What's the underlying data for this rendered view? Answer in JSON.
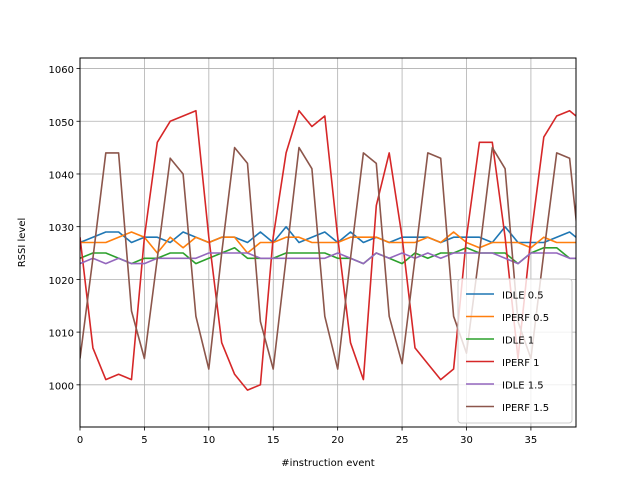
{
  "chart_data": {
    "type": "line",
    "title": "",
    "xlabel": "#instruction event",
    "ylabel": "RSSI level",
    "xlim": [
      0,
      38.5
    ],
    "ylim": [
      992,
      1062
    ],
    "xticks": [
      0,
      5,
      10,
      15,
      20,
      25,
      30,
      35
    ],
    "yticks": [
      1000,
      1010,
      1020,
      1030,
      1040,
      1050,
      1060
    ],
    "grid": true,
    "legend_position": "lower-right",
    "x": [
      0,
      1,
      2,
      3,
      4,
      5,
      6,
      7,
      8,
      9,
      10,
      11,
      12,
      13,
      14,
      15,
      16,
      17,
      18,
      19,
      20,
      21,
      22,
      23,
      24,
      25,
      26,
      27,
      28,
      29,
      30,
      31,
      32,
      33,
      34,
      35,
      36,
      37,
      38,
      39
    ],
    "series": [
      {
        "name": "IDLE 0.5",
        "color": "#1f77b4",
        "values": [
          1027,
          1028,
          1029,
          1029,
          1027,
          1028,
          1028,
          1027,
          1029,
          1028,
          1027,
          1028,
          1028,
          1027,
          1029,
          1027,
          1030,
          1027,
          1028,
          1029,
          1027,
          1029,
          1027,
          1028,
          1027,
          1028,
          1028,
          1028,
          1027,
          1028,
          1028,
          1028,
          1027,
          1030,
          1027,
          1027,
          1027,
          1028,
          1029,
          1027
        ]
      },
      {
        "name": "IPERF 0.5",
        "color": "#ff7f0e",
        "values": [
          1027,
          1027,
          1027,
          1028,
          1029,
          1028,
          1025,
          1028,
          1026,
          1028,
          1027,
          1028,
          1028,
          1025,
          1027,
          1027,
          1028,
          1028,
          1027,
          1027,
          1027,
          1028,
          1028,
          1028,
          1027,
          1027,
          1027,
          1028,
          1027,
          1029,
          1027,
          1026,
          1027,
          1027,
          1027,
          1026,
          1028,
          1027,
          1027,
          1027
        ]
      },
      {
        "name": "IDLE 1",
        "color": "#2ca02c",
        "values": [
          1024,
          1025,
          1025,
          1024,
          1023,
          1024,
          1024,
          1025,
          1025,
          1023,
          1024,
          1025,
          1026,
          1024,
          1024,
          1024,
          1025,
          1025,
          1025,
          1025,
          1024,
          1024,
          1023,
          1025,
          1024,
          1023,
          1025,
          1024,
          1025,
          1025,
          1026,
          1025,
          1025,
          1025,
          1023,
          1025,
          1026,
          1026,
          1024,
          1024
        ]
      },
      {
        "name": "IPERF 1",
        "color": "#d62728",
        "values": [
          1028,
          1007,
          1001,
          1002,
          1001,
          1028,
          1046,
          1050,
          1051,
          1052,
          1028,
          1008,
          1002,
          999,
          1000,
          1028,
          1044,
          1052,
          1049,
          1051,
          1028,
          1008,
          1001,
          1034,
          1044,
          1028,
          1007,
          1004,
          1001,
          1003,
          1028,
          1046,
          1046,
          1028,
          1005,
          1028,
          1047,
          1051,
          1052,
          1050
        ]
      },
      {
        "name": "IDLE 1.5",
        "color": "#9467bd",
        "values": [
          1023,
          1024,
          1023,
          1024,
          1023,
          1023,
          1024,
          1024,
          1024,
          1024,
          1025,
          1025,
          1025,
          1025,
          1024,
          1024,
          1024,
          1024,
          1024,
          1024,
          1025,
          1024,
          1023,
          1025,
          1024,
          1025,
          1024,
          1025,
          1024,
          1025,
          1025,
          1025,
          1025,
          1024,
          1023,
          1025,
          1025,
          1025,
          1024,
          1024
        ]
      },
      {
        "name": "IPERF 1.5",
        "color": "#8c564b",
        "values": [
          1005,
          1024,
          1044,
          1044,
          1014,
          1005,
          1024,
          1043,
          1040,
          1013,
          1003,
          1025,
          1045,
          1042,
          1012,
          1003,
          1024,
          1045,
          1041,
          1013,
          1003,
          1024,
          1044,
          1042,
          1013,
          1004,
          1024,
          1044,
          1043,
          1013,
          1006,
          1025,
          1045,
          1041,
          1012,
          1005,
          1025,
          1044,
          1043,
          1020
        ]
      }
    ]
  }
}
